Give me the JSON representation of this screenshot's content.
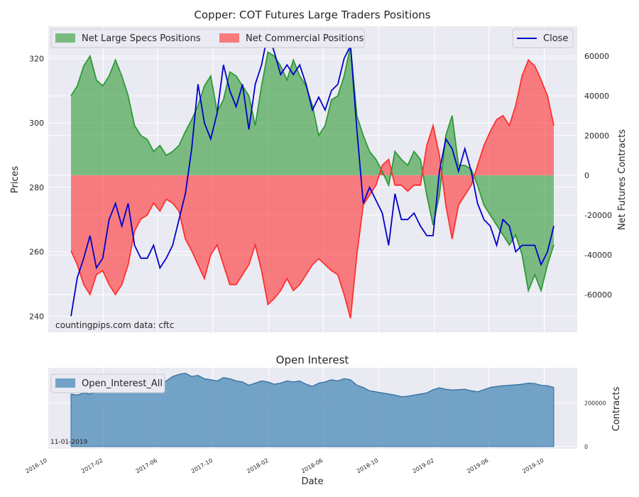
{
  "colors": {
    "panel_bg": "#eaeaf2",
    "grid": "#ffffff",
    "specs_fill": "#2e9a36",
    "comm_fill": "#ff3030",
    "close_line": "#0000cc",
    "oi_fill": "#4b8ab8",
    "oi_line": "#2f6fa0"
  },
  "chart_data": [
    {
      "type": "area",
      "title": "Copper: COT Futures Large Traders Positions",
      "ylabel_left": "Prices",
      "ylabel_right": "Net Futures Contracts",
      "watermark": "countingpips.com     data: cftc",
      "grid": true,
      "legend_left": {
        "placement": "top-left",
        "entries": [
          "Net Large Specs Positions",
          "Net Commercial Positions"
        ]
      },
      "legend_right": {
        "placement": "top-right",
        "entries": [
          "Close"
        ]
      },
      "x_ticks": [
        "2016-10",
        "2017-02",
        "2017-06",
        "2017-10",
        "2018-02",
        "2018-06",
        "2018-10",
        "2019-02",
        "2019-06",
        "2019-10"
      ],
      "y_left_ticks": [
        240,
        260,
        280,
        300,
        320
      ],
      "y_left_lim": [
        235,
        330
      ],
      "y_right_ticks": [
        -60000,
        -40000,
        -20000,
        0,
        20000,
        40000,
        60000
      ],
      "y_right_lim": [
        -79000,
        75000
      ],
      "x": [
        "2016-11-22",
        "2016-12-06",
        "2016-12-20",
        "2017-01-03",
        "2017-01-17",
        "2017-01-31",
        "2017-02-14",
        "2017-02-28",
        "2017-03-14",
        "2017-03-28",
        "2017-04-11",
        "2017-04-25",
        "2017-05-09",
        "2017-05-23",
        "2017-06-06",
        "2017-06-20",
        "2017-07-04",
        "2017-07-18",
        "2017-08-01",
        "2017-08-15",
        "2017-08-29",
        "2017-09-12",
        "2017-09-26",
        "2017-10-10",
        "2017-10-24",
        "2017-11-07",
        "2017-11-21",
        "2017-12-05",
        "2017-12-19",
        "2018-01-02",
        "2018-01-16",
        "2018-01-30",
        "2018-02-13",
        "2018-02-27",
        "2018-03-13",
        "2018-03-27",
        "2018-04-10",
        "2018-04-24",
        "2018-05-08",
        "2018-05-22",
        "2018-06-05",
        "2018-06-19",
        "2018-07-03",
        "2018-07-17",
        "2018-07-31",
        "2018-08-14",
        "2018-08-28",
        "2018-09-11",
        "2018-09-25",
        "2018-10-09",
        "2018-10-23",
        "2018-11-06",
        "2018-11-20",
        "2018-12-04",
        "2018-12-18",
        "2019-01-01",
        "2019-01-15",
        "2019-01-29",
        "2019-02-12",
        "2019-02-26",
        "2019-03-12",
        "2019-03-26",
        "2019-04-09",
        "2019-04-23",
        "2019-05-07",
        "2019-05-21",
        "2019-06-04",
        "2019-06-18",
        "2019-07-02",
        "2019-07-16",
        "2019-07-30",
        "2019-08-13",
        "2019-08-27",
        "2019-09-10",
        "2019-09-24",
        "2019-10-08",
        "2019-10-22"
      ],
      "series": [
        {
          "name": "Net Large Specs Positions",
          "axis": "right",
          "values": [
            40000,
            45000,
            55000,
            60000,
            48000,
            45000,
            50000,
            58000,
            50000,
            40000,
            25000,
            20000,
            18000,
            12000,
            15000,
            10000,
            12000,
            15000,
            22000,
            28000,
            35000,
            45000,
            50000,
            32000,
            38000,
            52000,
            50000,
            45000,
            40000,
            25000,
            45000,
            62000,
            60000,
            55000,
            48000,
            58000,
            50000,
            45000,
            35000,
            20000,
            25000,
            38000,
            40000,
            50000,
            65000,
            30000,
            20000,
            12000,
            8000,
            2000,
            -5000,
            12000,
            8000,
            5000,
            12000,
            8000,
            -10000,
            -25000,
            -10000,
            20000,
            30000,
            5000,
            5000,
            3000,
            -5000,
            -15000,
            -20000,
            -25000,
            -30000,
            -35000,
            -30000,
            -40000,
            -58000,
            -50000,
            -58000,
            -45000,
            -35000
          ]
        },
        {
          "name": "Net Commercial Positions",
          "axis": "right",
          "values": [
            -38000,
            -45000,
            -55000,
            -60000,
            -50000,
            -48000,
            -55000,
            -60000,
            -55000,
            -45000,
            -28000,
            -22000,
            -20000,
            -14000,
            -18000,
            -12000,
            -14000,
            -18000,
            -32000,
            -38000,
            -45000,
            -52000,
            -40000,
            -35000,
            -45000,
            -55000,
            -55000,
            -50000,
            -45000,
            -35000,
            -48000,
            -65000,
            -62000,
            -58000,
            -52000,
            -58000,
            -55000,
            -50000,
            -45000,
            -42000,
            -45000,
            -48000,
            -50000,
            -60000,
            -72000,
            -40000,
            -15000,
            -10000,
            -5000,
            5000,
            8000,
            -5000,
            -5000,
            -8000,
            -5000,
            -5000,
            15000,
            25000,
            10000,
            -15000,
            -32000,
            -15000,
            -10000,
            -5000,
            5000,
            15000,
            22000,
            28000,
            30000,
            25000,
            35000,
            50000,
            58000,
            55000,
            48000,
            40000,
            25000
          ]
        },
        {
          "name": "Close",
          "axis": "left",
          "values": [
            240,
            252,
            258,
            265,
            255,
            258,
            270,
            275,
            268,
            275,
            262,
            258,
            258,
            262,
            255,
            258,
            262,
            270,
            278,
            292,
            312,
            300,
            295,
            303,
            318,
            310,
            305,
            312,
            298,
            312,
            318,
            328,
            322,
            315,
            318,
            315,
            318,
            312,
            304,
            308,
            304,
            310,
            312,
            320,
            324,
            298,
            275,
            280,
            276,
            272,
            262,
            278,
            270,
            270,
            272,
            268,
            265,
            265,
            285,
            295,
            292,
            285,
            292,
            285,
            275,
            270,
            268,
            262,
            270,
            268,
            260,
            262,
            262,
            262,
            256,
            260,
            268
          ]
        }
      ]
    },
    {
      "type": "area",
      "title": "Open Interest",
      "xlabel": "Date",
      "ylabel_right": "Contracts",
      "date_label": "11-01-2019",
      "grid": true,
      "legend": {
        "placement": "top-left",
        "entries": [
          "Open_Interest_All"
        ]
      },
      "y_right_ticks": [
        0,
        200000
      ],
      "y_right_lim": [
        -10000,
        360000
      ],
      "series": [
        {
          "name": "Open_Interest_All",
          "values": [
            240000,
            235000,
            245000,
            240000,
            250000,
            260000,
            265000,
            255000,
            260000,
            270000,
            268000,
            275000,
            280000,
            275000,
            285000,
            300000,
            320000,
            330000,
            335000,
            320000,
            325000,
            310000,
            305000,
            300000,
            315000,
            310000,
            300000,
            295000,
            280000,
            290000,
            300000,
            295000,
            285000,
            290000,
            300000,
            295000,
            300000,
            285000,
            275000,
            290000,
            295000,
            305000,
            300000,
            310000,
            305000,
            280000,
            270000,
            255000,
            250000,
            245000,
            240000,
            235000,
            228000,
            230000,
            235000,
            240000,
            245000,
            260000,
            268000,
            262000,
            258000,
            260000,
            262000,
            255000,
            250000,
            260000,
            270000,
            275000,
            278000,
            280000,
            282000,
            285000,
            290000,
            288000,
            280000,
            278000,
            270000
          ]
        }
      ]
    }
  ]
}
